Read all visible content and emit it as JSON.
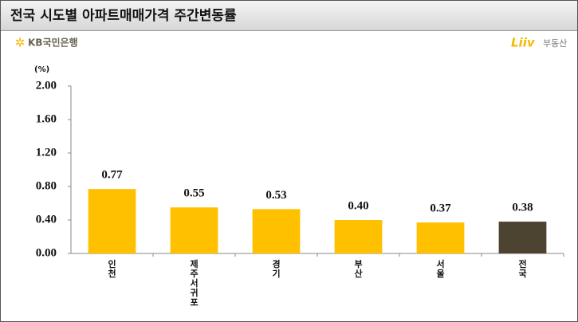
{
  "chart_data": {
    "type": "bar",
    "title": "전국 시도별 아파트매매가격 주간변동률",
    "logos": {
      "bank": "KB국민은행",
      "app": "Liiv",
      "app_suffix": "부동산"
    },
    "unit_label": "(%)",
    "categories": [
      "인천",
      "제주서귀포",
      "경기",
      "부산",
      "서울",
      "전국"
    ],
    "values": [
      0.77,
      0.55,
      0.53,
      0.4,
      0.37,
      0.38
    ],
    "value_labels": [
      "0.77",
      "0.55",
      "0.53",
      "0.40",
      "0.37",
      "0.38"
    ],
    "colors": [
      "#FFC000",
      "#FFC000",
      "#FFC000",
      "#FFC000",
      "#FFC000",
      "#4D4331"
    ],
    "ylim": [
      0,
      2
    ],
    "yticks": [
      {
        "value": 0,
        "label": "0.00"
      },
      {
        "value": 0.4,
        "label": "0.40"
      },
      {
        "value": 0.8,
        "label": "0.80"
      },
      {
        "value": 1.2,
        "label": "1.20"
      },
      {
        "value": 1.6,
        "label": "1.60"
      },
      {
        "value": 2,
        "label": "2.00"
      }
    ],
    "grid": false
  }
}
